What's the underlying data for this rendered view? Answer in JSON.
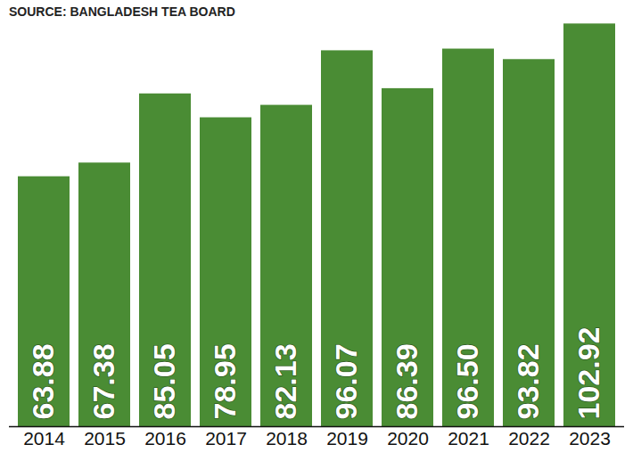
{
  "chart_data": {
    "type": "bar",
    "title": "SOURCE: BANGLADESH TEA BOARD",
    "categories": [
      "2014",
      "2015",
      "2016",
      "2017",
      "2018",
      "2019",
      "2020",
      "2021",
      "2022",
      "2023"
    ],
    "values": [
      63.88,
      67.38,
      85.05,
      78.95,
      82.13,
      96.07,
      86.39,
      96.5,
      93.82,
      102.92
    ],
    "value_labels": [
      "63.88",
      "67.38",
      "85.05",
      "78.95",
      "82.13",
      "96.07",
      "86.39",
      "96.50",
      "93.82",
      "102.92"
    ],
    "color": "#4a8c34",
    "ylim": [
      0,
      103
    ],
    "data_labels": true,
    "tick_labels": "x"
  }
}
